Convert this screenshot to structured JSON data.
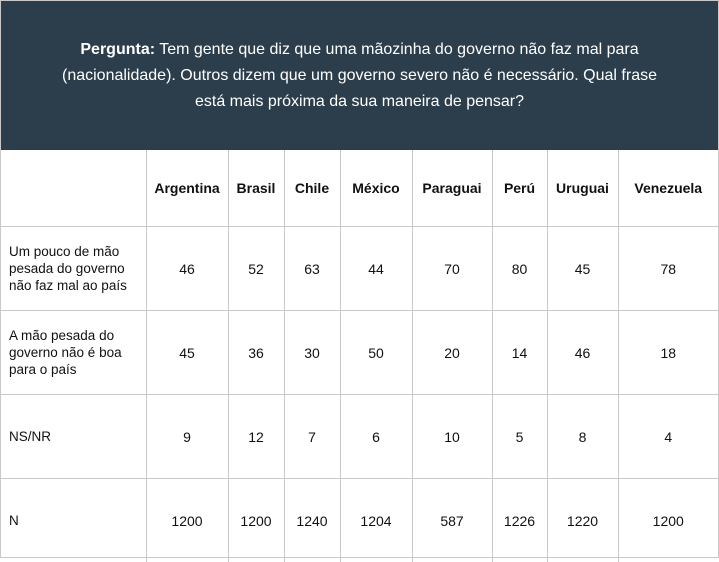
{
  "question": {
    "label": "Pergunta:",
    "text": " Tem gente que diz que uma mãozinha do governo não faz mal para (nacionalidade). Outros dizem que um governo severo não é necessário. Qual frase está mais próxima da sua maneira de pensar?"
  },
  "table": {
    "columns": [
      "Argentina",
      "Brasil",
      "Chile",
      "México",
      "Paraguai",
      "Perú",
      "Uruguai",
      "Venezuela"
    ],
    "rows": [
      {
        "label": "Um pouco de mão pesada do governo não faz mal ao país",
        "values": [
          "46",
          "52",
          "63",
          "44",
          "70",
          "80",
          "45",
          "78"
        ]
      },
      {
        "label": "A mão pesada do governo não é boa para o país",
        "values": [
          "45",
          "36",
          "30",
          "50",
          "20",
          "14",
          "46",
          "18"
        ]
      },
      {
        "label": "NS/NR",
        "values": [
          "9",
          "12",
          "7",
          "6",
          "10",
          "5",
          "8",
          "4"
        ]
      },
      {
        "label": "N",
        "values": [
          "1200",
          "1200",
          "1240",
          "1204",
          "587",
          "1226",
          "1220",
          "1200"
        ]
      }
    ]
  }
}
